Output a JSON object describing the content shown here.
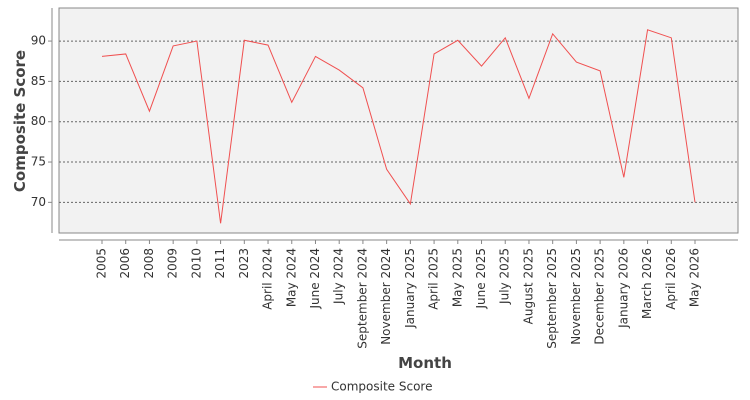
{
  "chart_data": {
    "type": "line",
    "x_label": "Month",
    "y_label": "Composite Score",
    "categories": [
      "2005",
      "2006",
      "2008",
      "2009",
      "2010",
      "2011",
      "2023",
      "April 2024",
      "May 2024",
      "June 2024",
      "July 2024",
      "September 2024",
      "November 2024",
      "January 2025",
      "April 2025",
      "May 2025",
      "June 2025",
      "July 2025",
      "August 2025",
      "September 2025",
      "November 2025",
      "December 2025",
      "January 2026",
      "March 2026",
      "April 2026",
      "May 2026"
    ],
    "series": [
      {
        "name": "Composite Score",
        "color": "#f05050",
        "values": [
          88.1,
          88.4,
          81.3,
          89.4,
          90.0,
          67.4,
          90.1,
          89.5,
          82.4,
          88.1,
          86.4,
          84.2,
          74.1,
          69.8,
          88.4,
          90.1,
          86.9,
          90.4,
          82.9,
          90.9,
          87.4,
          86.3,
          73.1,
          91.4,
          90.4,
          70.0
        ]
      }
    ],
    "ylim": [
      66.2,
      94.1
    ],
    "yticks": [
      70,
      75,
      80,
      85,
      90
    ],
    "grid": true,
    "legend": "bottom"
  }
}
